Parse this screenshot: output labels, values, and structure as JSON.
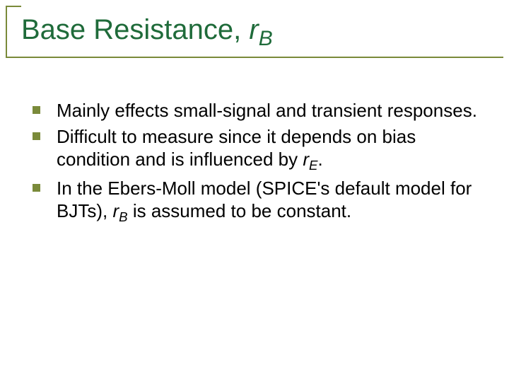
{
  "colors": {
    "rule": "#7a8a3a",
    "title": "#1f6b3a",
    "bullet": "#7a8a3a",
    "body": "#000000",
    "background": "#ffffff"
  },
  "title": {
    "prefix": "Base Resistance, ",
    "var": "r",
    "sub": "B",
    "fontsize": 40
  },
  "bullets": [
    {
      "segments": [
        {
          "text": "Mainly effects small-signal and transient responses."
        }
      ]
    },
    {
      "segments": [
        {
          "text": "Difficult to measure since it depends on bias condition and is influenced by "
        },
        {
          "text": "r",
          "italic": true
        },
        {
          "text": "E",
          "sub": true
        },
        {
          "text": "."
        }
      ]
    },
    {
      "segments": [
        {
          "text": "In the Ebers-Moll model (SPICE's default model for BJTs), "
        },
        {
          "text": "r",
          "italic": true
        },
        {
          "text": "B",
          "sub": true
        },
        {
          "text": " is assumed to be constant."
        }
      ]
    }
  ],
  "body_fontsize": 26
}
